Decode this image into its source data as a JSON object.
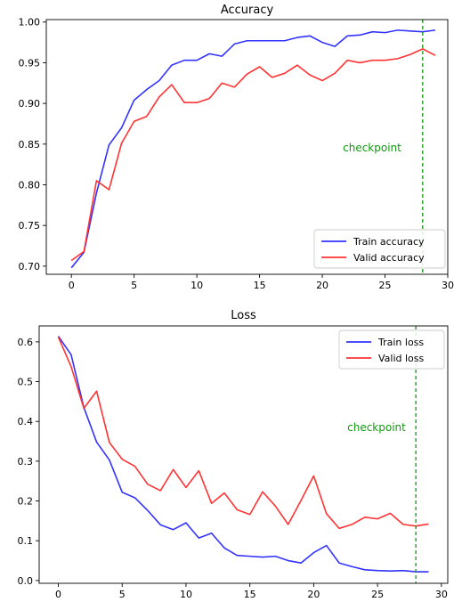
{
  "colors": {
    "train": "#3333ff",
    "valid": "#ff3333",
    "checkpoint": "#119911"
  },
  "chart_data": [
    {
      "type": "line",
      "title": "Accuracy",
      "xlabel": "",
      "ylabel": "",
      "xlim": [
        -2,
        30
      ],
      "ylim": [
        0.69,
        1.003
      ],
      "xticks": [
        0,
        5,
        10,
        15,
        20,
        25,
        30
      ],
      "yticks": [
        0.7,
        0.75,
        0.8,
        0.85,
        0.9,
        0.95,
        1.0
      ],
      "ytick_decimals": 2,
      "grid": false,
      "legend_position": "lower-right",
      "checkpoint": {
        "x": 28,
        "label": "checkpoint"
      },
      "x": [
        0,
        1,
        2,
        3,
        4,
        5,
        6,
        7,
        8,
        9,
        10,
        11,
        12,
        13,
        14,
        15,
        16,
        17,
        18,
        19,
        20,
        21,
        22,
        23,
        24,
        25,
        26,
        27,
        28,
        29
      ],
      "series": [
        {
          "name": "Train accuracy",
          "color_key": "train",
          "values": [
            0.698,
            0.717,
            0.79,
            0.849,
            0.87,
            0.904,
            0.917,
            0.928,
            0.947,
            0.953,
            0.953,
            0.961,
            0.958,
            0.973,
            0.977,
            0.977,
            0.977,
            0.977,
            0.981,
            0.983,
            0.975,
            0.97,
            0.983,
            0.984,
            0.988,
            0.987,
            0.99,
            0.989,
            0.988,
            0.99
          ]
        },
        {
          "name": "Valid accuracy",
          "color_key": "valid",
          "values": [
            0.707,
            0.718,
            0.805,
            0.794,
            0.851,
            0.878,
            0.884,
            0.908,
            0.923,
            0.901,
            0.901,
            0.906,
            0.925,
            0.92,
            0.936,
            0.945,
            0.932,
            0.937,
            0.947,
            0.935,
            0.928,
            0.937,
            0.953,
            0.95,
            0.953,
            0.953,
            0.955,
            0.96,
            0.967,
            0.959
          ]
        }
      ]
    },
    {
      "type": "line",
      "title": "Loss",
      "xlabel": "",
      "ylabel": "",
      "xlim": [
        -1.5,
        30.5
      ],
      "ylim": [
        -0.007,
        0.64
      ],
      "xticks": [
        0,
        5,
        10,
        15,
        20,
        25,
        30
      ],
      "yticks": [
        0.0,
        0.1,
        0.2,
        0.3,
        0.4,
        0.5,
        0.6
      ],
      "ytick_decimals": 1,
      "grid": false,
      "legend_position": "upper-right",
      "checkpoint": {
        "x": 28,
        "label": "checkpoint"
      },
      "x": [
        0,
        1,
        2,
        3,
        4,
        5,
        6,
        7,
        8,
        9,
        10,
        11,
        12,
        13,
        14,
        15,
        16,
        17,
        18,
        19,
        20,
        21,
        22,
        23,
        24,
        25,
        26,
        27,
        28,
        29
      ],
      "series": [
        {
          "name": "Train loss",
          "color_key": "train",
          "values": [
            0.614,
            0.568,
            0.435,
            0.348,
            0.303,
            0.222,
            0.208,
            0.176,
            0.14,
            0.128,
            0.145,
            0.107,
            0.119,
            0.082,
            0.063,
            0.061,
            0.059,
            0.061,
            0.05,
            0.044,
            0.07,
            0.088,
            0.044,
            0.035,
            0.027,
            0.025,
            0.024,
            0.025,
            0.022,
            0.022
          ]
        },
        {
          "name": "Valid loss",
          "color_key": "valid",
          "values": [
            0.612,
            0.538,
            0.433,
            0.476,
            0.347,
            0.305,
            0.287,
            0.242,
            0.226,
            0.279,
            0.234,
            0.276,
            0.194,
            0.22,
            0.178,
            0.166,
            0.223,
            0.187,
            0.141,
            0.201,
            0.263,
            0.168,
            0.131,
            0.141,
            0.159,
            0.155,
            0.169,
            0.141,
            0.137,
            0.142
          ]
        }
      ]
    }
  ]
}
